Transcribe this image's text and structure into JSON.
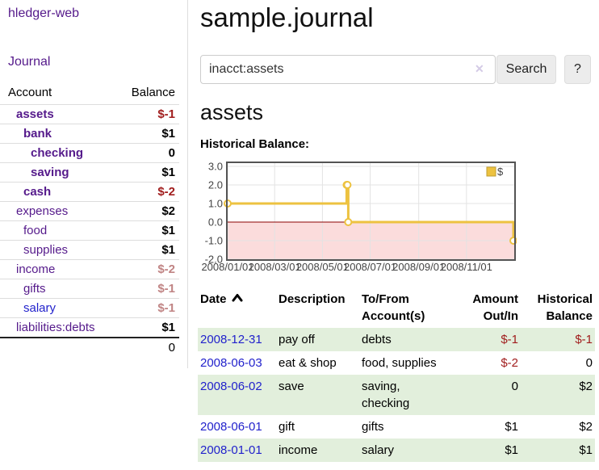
{
  "app": {
    "title": "hledger-web"
  },
  "sidebar": {
    "journal_link": "Journal",
    "accounts_header": {
      "account": "Account",
      "balance": "Balance"
    },
    "accounts": [
      {
        "name": "assets",
        "balance": "$-1",
        "depth": 1,
        "bold": true,
        "balance_style": "neg"
      },
      {
        "name": "bank",
        "balance": "$1",
        "depth": 2,
        "bold": true,
        "balance_style": "pos"
      },
      {
        "name": "checking",
        "balance": "0",
        "depth": 3,
        "bold": true,
        "balance_style": "pos"
      },
      {
        "name": "saving",
        "balance": "$1",
        "depth": 3,
        "bold": true,
        "balance_style": "pos"
      },
      {
        "name": "cash",
        "balance": "$-2",
        "depth": 2,
        "bold": true,
        "balance_style": "neg"
      },
      {
        "name": "expenses",
        "balance": "$2",
        "depth": 1,
        "bold": false,
        "balance_style": "pos"
      },
      {
        "name": "food",
        "balance": "$1",
        "depth": 2,
        "bold": false,
        "balance_style": "pos"
      },
      {
        "name": "supplies",
        "balance": "$1",
        "depth": 2,
        "bold": false,
        "balance_style": "pos"
      },
      {
        "name": "income",
        "balance": "$-2",
        "depth": 1,
        "bold": false,
        "balance_style": "neg_faded"
      },
      {
        "name": "gifts",
        "balance": "$-1",
        "depth": 2,
        "bold": false,
        "balance_style": "neg_faded"
      },
      {
        "name": "salary",
        "balance": "$-1",
        "depth": 2,
        "bold": false,
        "balance_style": "neg_faded",
        "link_style": "unvisited"
      },
      {
        "name": "liabilities:debts",
        "balance": "$1",
        "depth": 1,
        "bold": false,
        "balance_style": "pos"
      }
    ],
    "total": "0"
  },
  "header": {
    "title": "sample.journal"
  },
  "search": {
    "value": "inacct:assets",
    "clear_icon": "✕",
    "button": "Search",
    "help_button": "?"
  },
  "account_page": {
    "title": "assets",
    "chart_label": "Historical Balance:"
  },
  "chart_data": {
    "type": "line",
    "step": true,
    "title": "Historical Balance",
    "xlim": [
      "2008-01-01",
      "2009-01-01"
    ],
    "ylim": [
      -2,
      3
    ],
    "y_ticks": [
      3,
      2,
      1,
      0,
      -1,
      -2
    ],
    "x_ticks": [
      {
        "date": "2008-01-01",
        "label": "2008/01/01"
      },
      {
        "date": "2008-03-01",
        "label": "2008/03/01"
      },
      {
        "date": "2008-05-01",
        "label": "2008/05/01"
      },
      {
        "date": "2008-07-01",
        "label": "2008/07/01"
      },
      {
        "date": "2008-09-01",
        "label": "2008/09/01"
      },
      {
        "date": "2008-11-01",
        "label": "2008/11/01"
      }
    ],
    "series": [
      {
        "name": "$",
        "color": "#edc240",
        "points": [
          [
            "2008-01-01",
            1
          ],
          [
            "2008-06-01",
            2
          ],
          [
            "2008-06-02",
            2
          ],
          [
            "2008-06-03",
            0
          ],
          [
            "2008-12-31",
            -1
          ]
        ]
      }
    ],
    "legend": {
      "label": "$",
      "position": "top-right"
    },
    "grid": true,
    "grid_color": "#e3e3e3",
    "border_color": "#545454",
    "zero_line_color": "#8b0000",
    "negative_region_color": "#fbdcdc"
  },
  "register": {
    "columns": [
      "Date",
      "Description",
      "To/From Account(s)",
      "Amount Out/In",
      "Historical Balance"
    ],
    "rows": [
      {
        "date": "2008-12-31",
        "description": "pay off",
        "accounts": "debts",
        "amount": "$-1",
        "balance": "$-1",
        "amount_negative": true,
        "balance_negative": true
      },
      {
        "date": "2008-06-03",
        "description": "eat & shop",
        "accounts": "food, supplies",
        "amount": "$-2",
        "balance": "0",
        "amount_negative": true,
        "balance_negative": false
      },
      {
        "date": "2008-06-02",
        "description": "save",
        "accounts": "saving, checking",
        "amount": "0",
        "balance": "$2",
        "amount_negative": false,
        "balance_negative": false
      },
      {
        "date": "2008-06-01",
        "description": "gift",
        "accounts": "gifts",
        "amount": "$1",
        "balance": "$2",
        "amount_negative": false,
        "balance_negative": false
      },
      {
        "date": "2008-01-01",
        "description": "income",
        "accounts": "salary",
        "amount": "$1",
        "balance": "$1",
        "amount_negative": false,
        "balance_negative": false
      }
    ]
  }
}
